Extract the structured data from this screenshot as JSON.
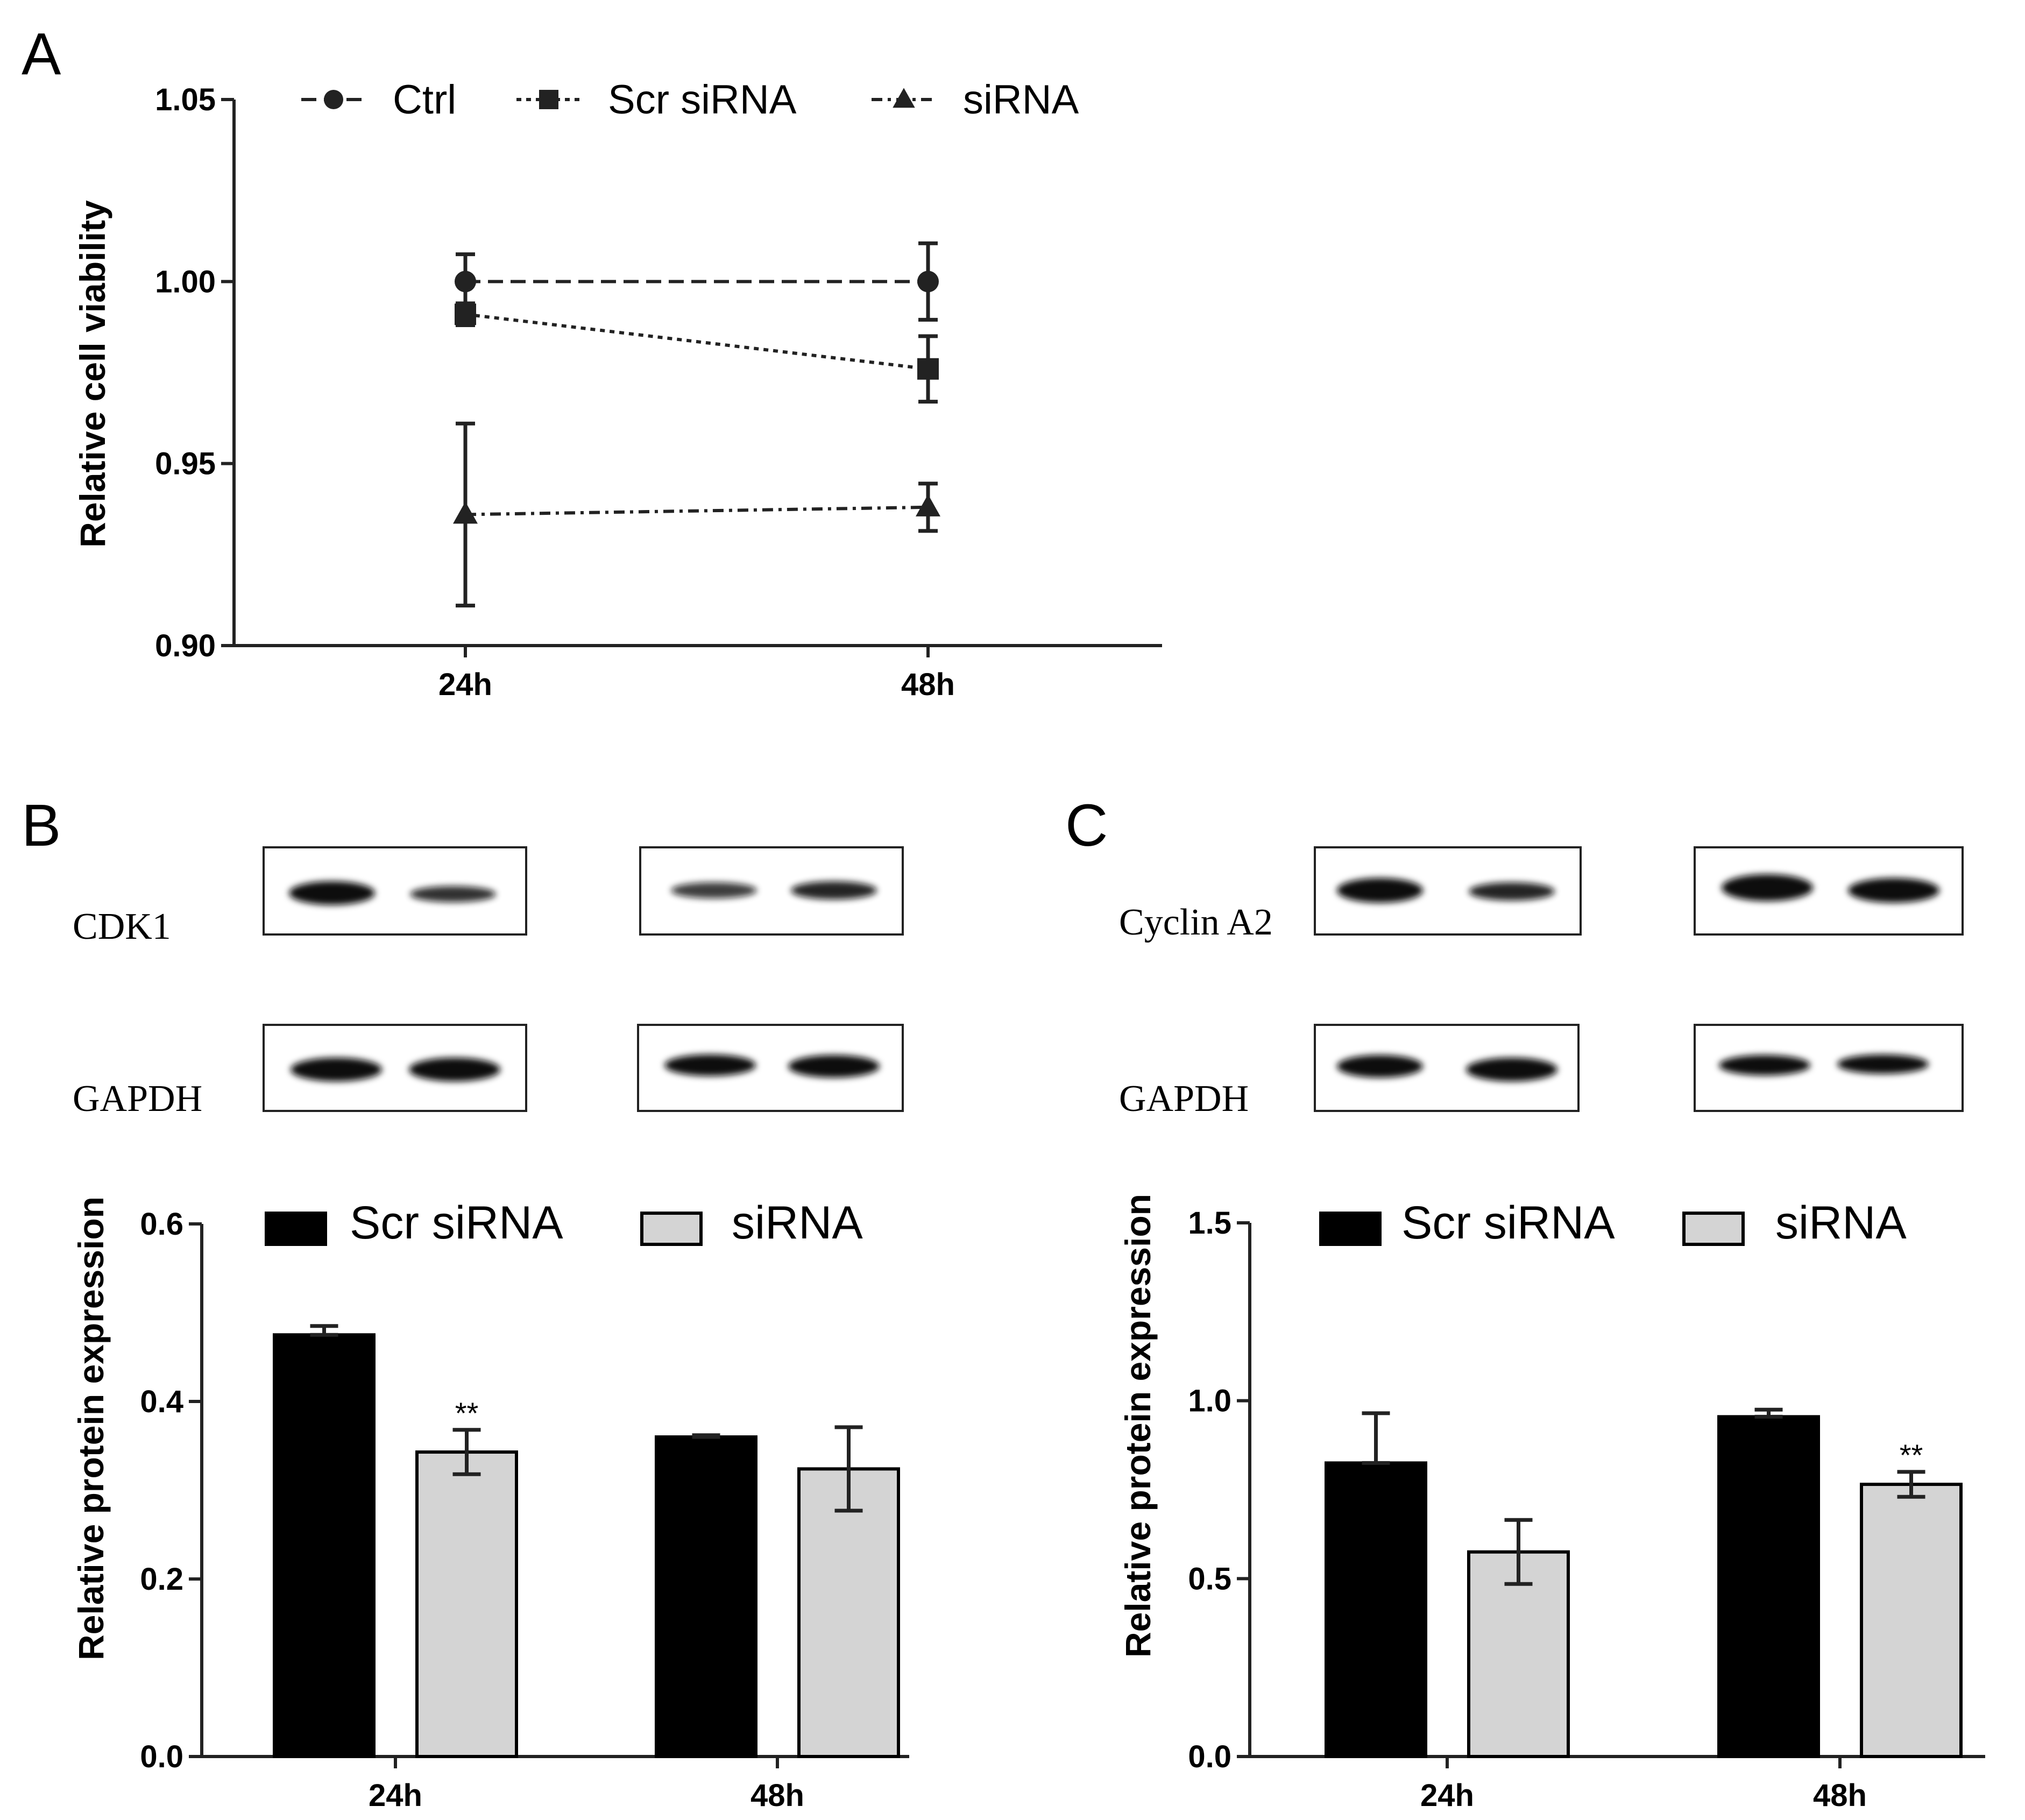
{
  "panels": {
    "a": {
      "letter": "A"
    },
    "b": {
      "letter": "B",
      "blot_labels": [
        "CDK1",
        "GAPDH"
      ]
    },
    "c": {
      "letter": "C",
      "blot_labels": [
        "Cyclin A2",
        "GAPDH"
      ]
    }
  },
  "colors": {
    "line": "#222222",
    "scr_bar": "#000000",
    "sirna_bar": "#d4d4d4",
    "band": "#111111"
  },
  "chart_data": [
    {
      "id": "A",
      "type": "line",
      "title": "",
      "xlabel": "",
      "ylabel": "Relative cell viability",
      "categories": [
        "24h",
        "48h"
      ],
      "ylim": [
        0.9,
        1.05
      ],
      "yticks": [
        "0.90",
        "0.95",
        "1.00",
        "1.05"
      ],
      "series": [
        {
          "name": "Ctrl",
          "marker": "circle",
          "dash": "dashed",
          "values": [
            1.0,
            1.0
          ],
          "errors": [
            0.0075,
            0.0105
          ]
        },
        {
          "name": "Scr siRNA",
          "marker": "square",
          "dash": "dotted",
          "values": [
            0.991,
            0.976
          ],
          "errors": [
            0.003,
            0.009
          ]
        },
        {
          "name": "siRNA",
          "marker": "triangle",
          "dash": "dashdot",
          "values": [
            0.936,
            0.938
          ],
          "errors": [
            0.025,
            0.0065
          ]
        }
      ]
    },
    {
      "id": "B",
      "type": "bar",
      "title": "",
      "xlabel": "",
      "ylabel": "Relative protein expression",
      "categories": [
        "24h",
        "48h"
      ],
      "ylim": [
        0,
        0.6
      ],
      "yticks": [
        "0.0",
        "0.2",
        "0.4",
        "0.6"
      ],
      "series": [
        {
          "name": "Scr siRNA",
          "values": [
            0.475,
            0.36
          ],
          "errors": [
            0.01,
            0.002
          ]
        },
        {
          "name": "siRNA",
          "values": [
            0.343,
            0.324
          ],
          "errors": [
            0.025,
            0.047
          ]
        }
      ],
      "annotations": [
        {
          "category": "24h",
          "series": "siRNA",
          "text": "**"
        }
      ]
    },
    {
      "id": "C",
      "type": "bar",
      "title": "",
      "xlabel": "",
      "ylabel": "Relative protein expression",
      "categories": [
        "24h",
        "48h"
      ],
      "ylim": [
        0,
        1.5
      ],
      "yticks": [
        "0.0",
        "0.5",
        "1.0",
        "1.5"
      ],
      "series": [
        {
          "name": "Scr siRNA",
          "values": [
            0.825,
            0.955
          ],
          "errors": [
            0.14,
            0.02
          ]
        },
        {
          "name": "siRNA",
          "values": [
            0.575,
            0.765
          ],
          "errors": [
            0.09,
            0.035
          ]
        }
      ],
      "annotations": [
        {
          "category": "48h",
          "series": "siRNA",
          "text": "**"
        }
      ]
    }
  ]
}
